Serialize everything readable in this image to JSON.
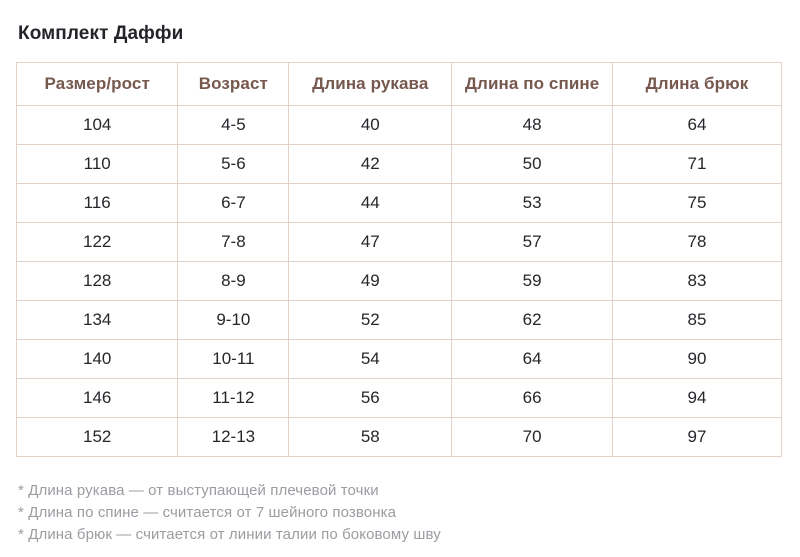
{
  "page": {
    "title": "Комплект Даффи"
  },
  "table": {
    "columns": [
      "Размер/рост",
      "Возраст",
      "Длина рукава",
      "Длина по спине",
      "Длина брюк"
    ],
    "column_widths_percent": [
      21.1,
      14.5,
      21.3,
      21.0,
      22.1
    ],
    "rows": [
      [
        "104",
        "4-5",
        "40",
        "48",
        "64"
      ],
      [
        "110",
        "5-6",
        "42",
        "50",
        "71"
      ],
      [
        "116",
        "6-7",
        "44",
        "53",
        "75"
      ],
      [
        "122",
        "7-8",
        "47",
        "57",
        "78"
      ],
      [
        "128",
        "8-9",
        "49",
        "59",
        "83"
      ],
      [
        "134",
        "9-10",
        "52",
        "62",
        "85"
      ],
      [
        "140",
        "10-11",
        "54",
        "64",
        "90"
      ],
      [
        "146",
        "11-12",
        "56",
        "66",
        "94"
      ],
      [
        "152",
        "12-13",
        "58",
        "70",
        "97"
      ]
    ]
  },
  "footnotes": [
    "* Длина рукава — от выступающей плечевой точки",
    "* Длина по спине — считается от 7 шейного позвонка",
    "* Длина брюк — считается от линии талии по боковому шву"
  ],
  "colors": {
    "title_text": "#23252a",
    "header_text": "#76584e",
    "body_text": "#26262b",
    "footnote_text": "#9c9ca2",
    "table_border": "#e3d2c9",
    "background": "#ffffff"
  }
}
